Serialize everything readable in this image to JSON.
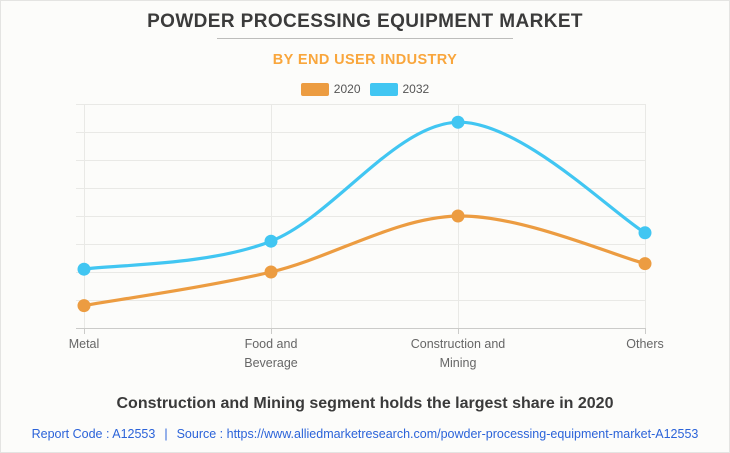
{
  "page": {
    "background": "#fcfcfa",
    "border_color": "#e4e4e2"
  },
  "header": {
    "title": "POWDER PROCESSING EQUIPMENT MARKET",
    "subtitle": "BY END USER INDUSTRY",
    "title_color": "#3b3b3b",
    "subtitle_color": "#f9a63c"
  },
  "legend": {
    "items": [
      {
        "label": "2020",
        "color": "#ec9c41"
      },
      {
        "label": "2032",
        "color": "#41c6f2"
      }
    ]
  },
  "chart_data": {
    "type": "line",
    "smooth": true,
    "title": "POWDER PROCESSING EQUIPMENT MARKET",
    "subtitle": "BY END USER INDUSTRY",
    "categories": [
      "Metal",
      "Food and Beverage",
      "Construction and Mining",
      "Others"
    ],
    "category_label_lines": [
      [
        "Metal"
      ],
      [
        "Food and",
        "Beverage"
      ],
      [
        "Construction and",
        "Mining"
      ],
      [
        "Others"
      ]
    ],
    "series": [
      {
        "name": "2020",
        "color": "#ec9c41",
        "values": [
          0.8,
          2.0,
          4.0,
          2.3
        ]
      },
      {
        "name": "2032",
        "color": "#41c6f2",
        "values": [
          2.1,
          3.1,
          7.35,
          3.4
        ]
      }
    ],
    "xlabel": "",
    "ylabel": "",
    "ylim": [
      0,
      8
    ],
    "y_axis_labels_visible": false,
    "grid": true,
    "grid_color": "#e9e9e6",
    "axis_color": "#cbcbc9",
    "legend_position": "top",
    "note": "y-axis has no printed tick labels; values are relative units estimated from gridlines (1 unit per gridline, 8 gridlines)"
  },
  "annotation": {
    "text": "Construction and Mining segment holds the largest share in 2020"
  },
  "footer": {
    "report_code": "Report Code : A12553",
    "separator": "|",
    "source_prefix": "Source :",
    "source_url": "https://www.alliedmarketresearch.com/powder-processing-equipment-market-A12553",
    "link_color": "#2b63d9"
  }
}
